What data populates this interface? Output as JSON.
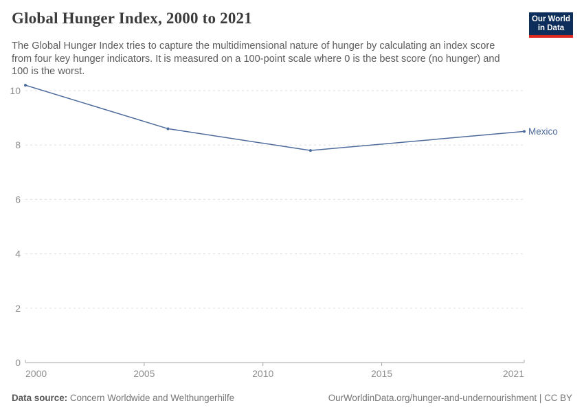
{
  "header": {
    "title": "Global Hunger Index, 2000 to 2021",
    "subtitle": "The Global Hunger Index tries to capture the multidimensional nature of hunger by calculating an index score from four key hunger indicators. It is measured on a 100-point scale where 0 is the best score (no hunger) and 100 is the worst.",
    "logo": {
      "line1": "Our World",
      "line2": "in Data",
      "bg_color": "#0d2e5a",
      "accent_color": "#dc2a20"
    }
  },
  "chart_data": {
    "type": "line",
    "title": "Global Hunger Index, 2000 to 2021",
    "xlabel": "",
    "ylabel": "",
    "xlim": [
      2000,
      2021
    ],
    "ylim": [
      0,
      10.5
    ],
    "x_ticks": [
      2000,
      2005,
      2010,
      2015,
      2021
    ],
    "y_ticks": [
      0,
      2,
      4,
      6,
      8,
      10
    ],
    "grid": "horizontal-dashed",
    "legend_position": "end-of-line-label",
    "series": [
      {
        "name": "Mexico",
        "color": "#4c6a9c",
        "x": [
          2000,
          2006,
          2012,
          2021
        ],
        "values": [
          10.2,
          8.6,
          7.8,
          8.5
        ]
      }
    ]
  },
  "colors": {
    "line": "#4c6a9c",
    "gridline": "#dedede",
    "axis": "#a3a3a3",
    "tick_label": "#8e8e8e",
    "title_text": "#3b3b3b",
    "subtitle_text": "#5b5b5b"
  },
  "footer": {
    "source_label": "Data source:",
    "source_value": "Concern Worldwide and Welthungerhilfe",
    "link": "OurWorldinData.org/hunger-and-undernourishment | CC BY"
  }
}
